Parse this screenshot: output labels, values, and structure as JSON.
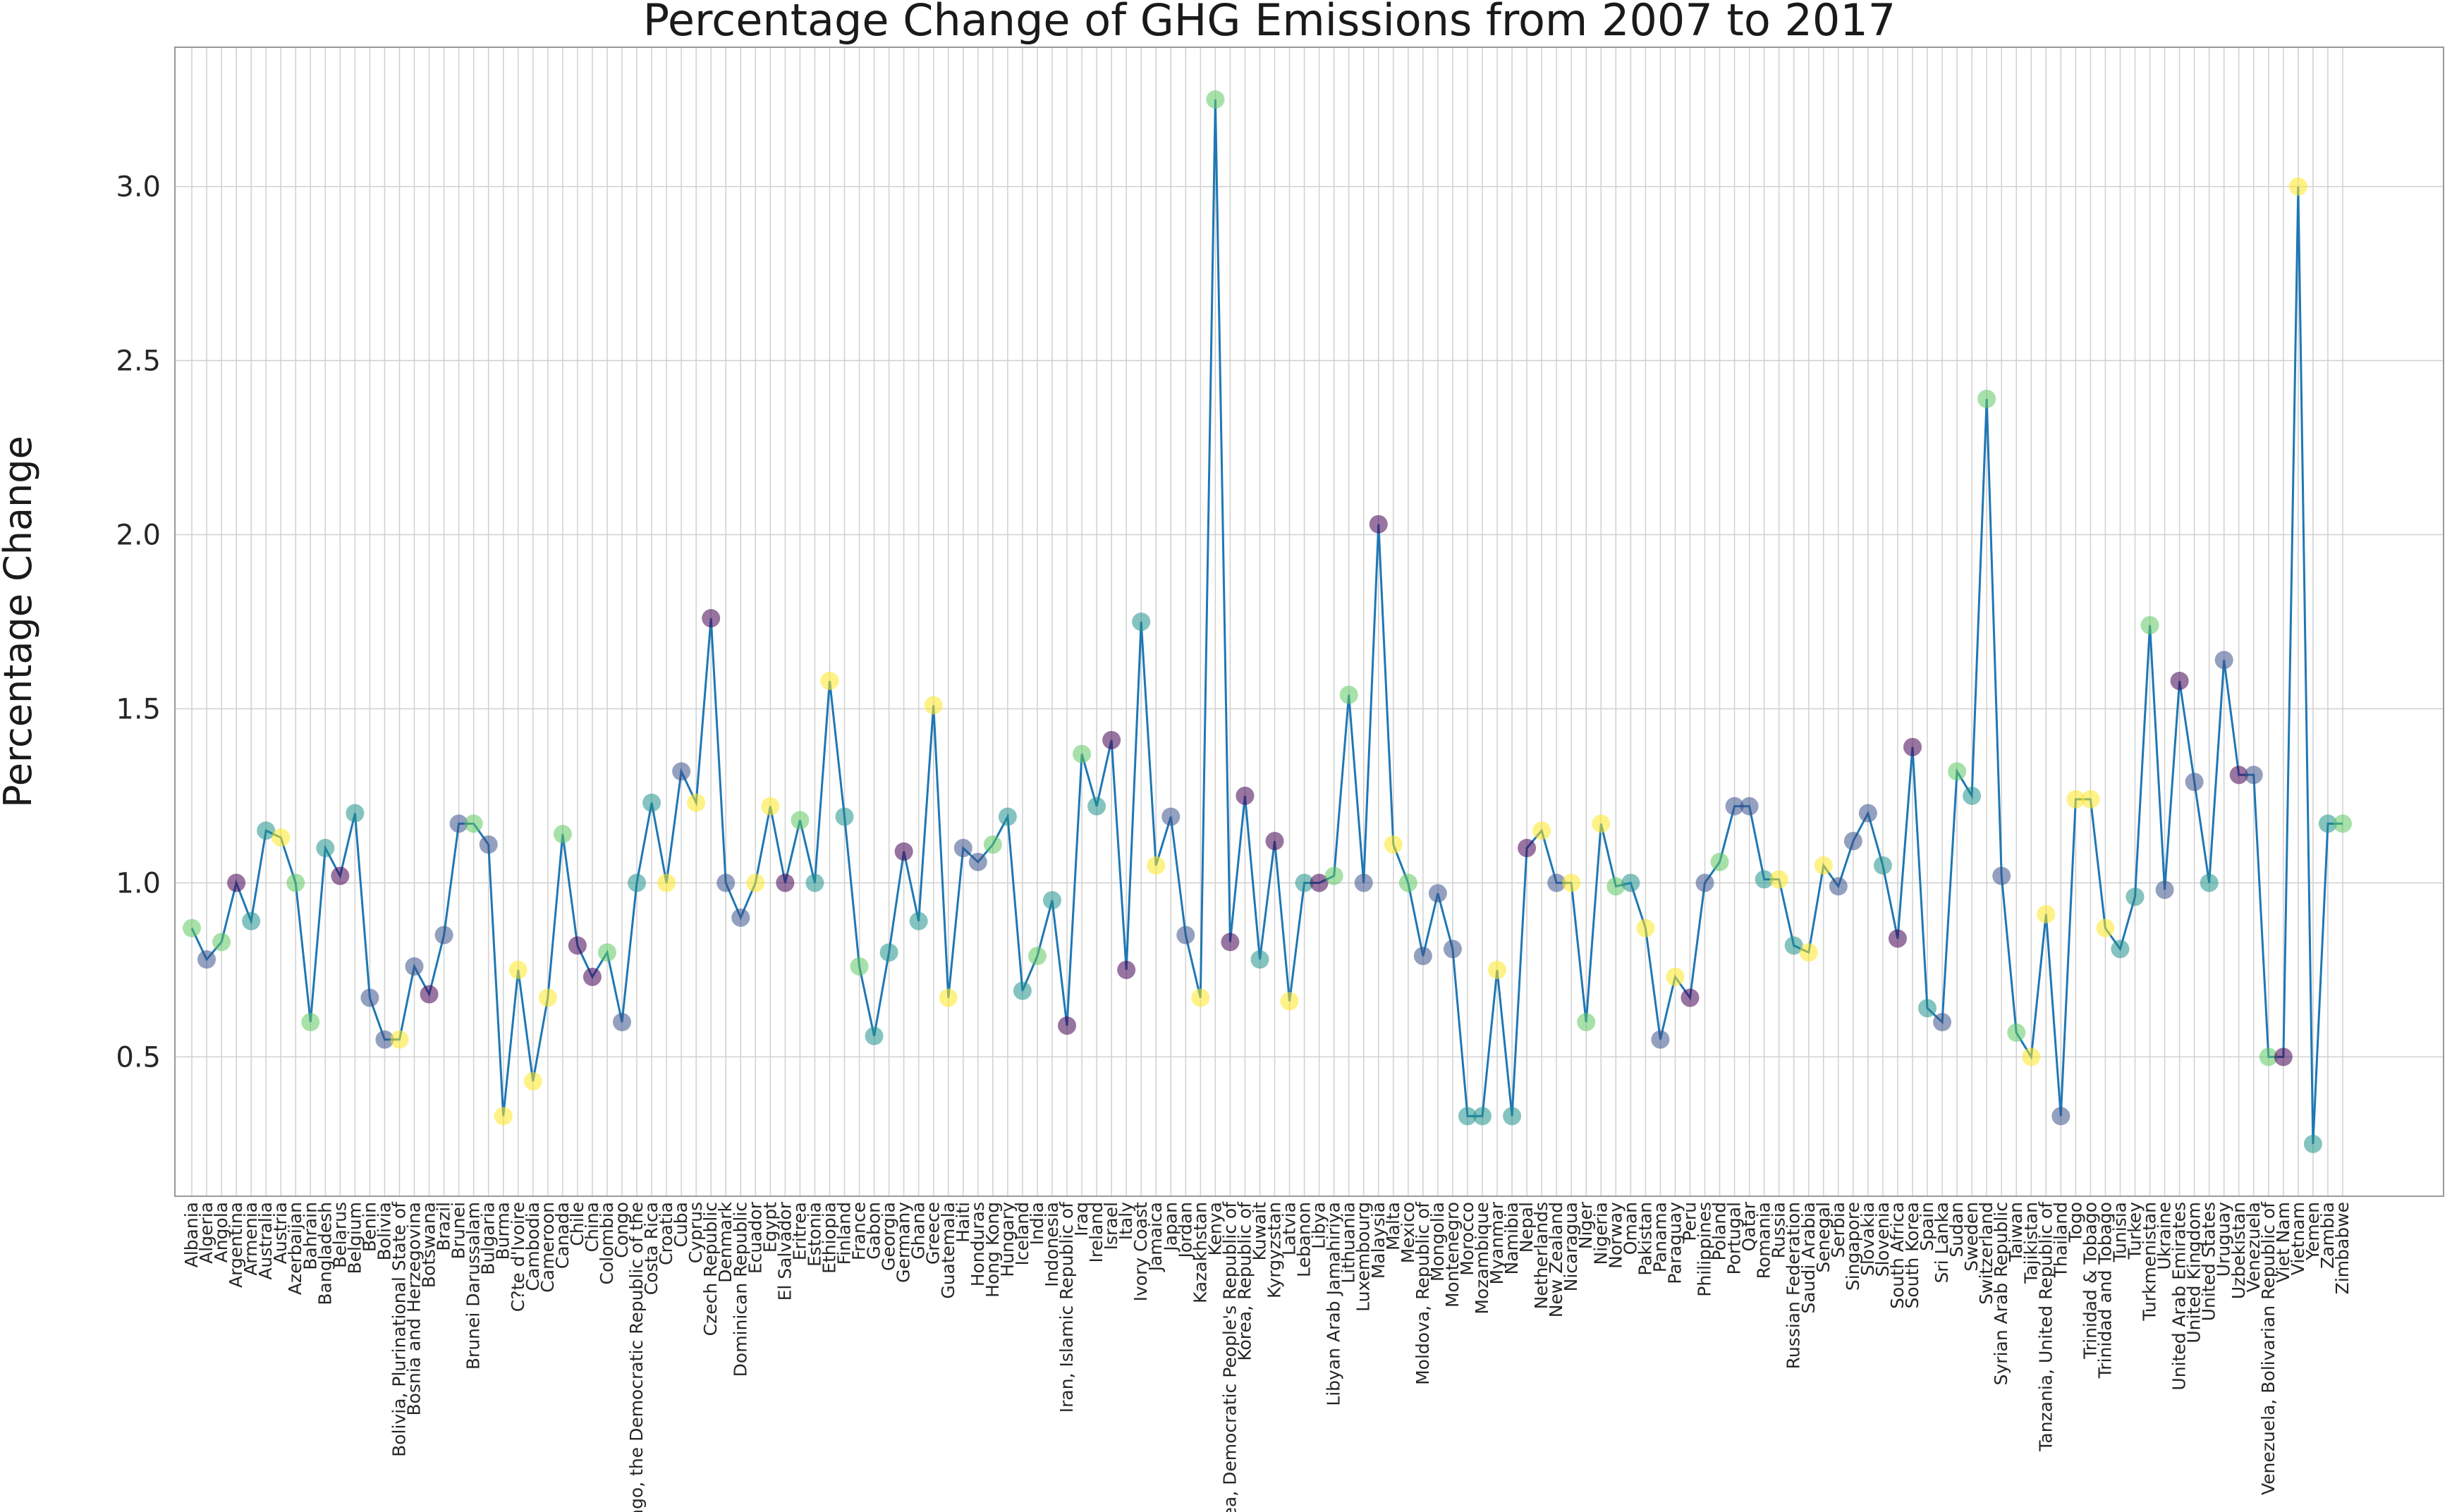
{
  "chart_data": {
    "type": "line",
    "title": "Percentage Change of GHG Emissions from 2007 to 2017",
    "xlabel": "",
    "ylabel": "Percentage Change",
    "ylim": [
      0.1,
      3.4
    ],
    "yticks": [
      "0.5",
      "1.0",
      "1.5",
      "2.0",
      "2.5",
      "3.0"
    ],
    "grid": true,
    "line_color": "#1f77b4",
    "palette": [
      "#440154",
      "#3b528b",
      "#21918c",
      "#5ec962",
      "#fde725"
    ],
    "categories": [
      "Albania",
      "Algeria",
      "Angola",
      "Argentina",
      "Armenia",
      "Australia",
      "Austria",
      "Azerbaijan",
      "Bahrain",
      "Bangladesh",
      "Belarus",
      "Belgium",
      "Benin",
      "Bolivia",
      "Bolivia, Plurinational State of",
      "Bosnia and Herzegovina",
      "Botswana",
      "Brazil",
      "Brunei",
      "Brunei Darussalam",
      "Bulgaria",
      "Burma",
      "C?te d'Ivoire",
      "Cambodia",
      "Cameroon",
      "Canada",
      "Chile",
      "China",
      "Colombia",
      "Congo",
      "Congo, the Democratic Republic of the",
      "Costa Rica",
      "Croatia",
      "Cuba",
      "Cyprus",
      "Czech Republic",
      "Denmark",
      "Dominican Republic",
      "Ecuador",
      "Egypt",
      "El Salvador",
      "Eritrea",
      "Estonia",
      "Ethiopia",
      "Finland",
      "France",
      "Gabon",
      "Georgia",
      "Germany",
      "Ghana",
      "Greece",
      "Guatemala",
      "Haiti",
      "Honduras",
      "Hong Kong",
      "Hungary",
      "Iceland",
      "India",
      "Indonesia",
      "Iran, Islamic Republic of",
      "Iraq",
      "Ireland",
      "Israel",
      "Italy",
      "Ivory Coast",
      "Jamaica",
      "Japan",
      "Jordan",
      "Kazakhstan",
      "Kenya",
      "Korea, Democratic People's Republic of",
      "Korea, Republic of",
      "Kuwait",
      "Kyrgyzstan",
      "Latvia",
      "Lebanon",
      "Libya",
      "Libyan Arab Jamahiriya",
      "Lithuania",
      "Luxembourg",
      "Malaysia",
      "Malta",
      "Mexico",
      "Moldova, Republic of",
      "Mongolia",
      "Montenegro",
      "Morocco",
      "Mozambique",
      "Myanmar",
      "Namibia",
      "Nepal",
      "Netherlands",
      "New Zealand",
      "Nicaragua",
      "Niger",
      "Nigeria",
      "Norway",
      "Oman",
      "Pakistan",
      "Panama",
      "Paraguay",
      "Peru",
      "Philippines",
      "Poland",
      "Portugal",
      "Qatar",
      "Romania",
      "Russia",
      "Russian Federation",
      "Saudi Arabia",
      "Senegal",
      "Serbia",
      "Singapore",
      "Slovakia",
      "Slovenia",
      "South Africa",
      "South Korea",
      "Spain",
      "Sri Lanka",
      "Sudan",
      "Sweden",
      "Switzerland",
      "Syrian Arab Republic",
      "Taiwan",
      "Tajikistan",
      "Tanzania, United Republic of",
      "Thailand",
      "Togo",
      "Trinidad & Tobago",
      "Trinidad and Tobago",
      "Tunisia",
      "Turkey",
      "Turkmenistan",
      "Ukraine",
      "United Arab Emirates",
      "United Kingdom",
      "United States",
      "Uruguay",
      "Uzbekistan",
      "Venezuela",
      "Venezuela, Bolivarian Republic of",
      "Viet Nam",
      "Vietnam",
      "Yemen",
      "Zambia",
      "Zimbabwe"
    ],
    "values": [
      0.87,
      0.78,
      0.83,
      1.0,
      0.89,
      1.15,
      1.13,
      1.0,
      0.6,
      1.1,
      1.02,
      1.2,
      0.67,
      0.55,
      0.55,
      0.76,
      0.68,
      0.85,
      1.17,
      1.17,
      1.11,
      0.33,
      0.75,
      0.43,
      0.67,
      1.14,
      0.82,
      0.73,
      0.8,
      0.6,
      1.0,
      1.23,
      1.0,
      1.32,
      1.23,
      1.76,
      1.0,
      0.9,
      1.0,
      1.22,
      1.0,
      1.18,
      1.0,
      1.58,
      1.19,
      0.76,
      0.56,
      0.8,
      1.09,
      0.89,
      1.51,
      0.67,
      1.1,
      1.06,
      1.11,
      1.19,
      0.69,
      0.79,
      0.95,
      0.59,
      1.37,
      1.22,
      1.41,
      0.75,
      1.75,
      1.05,
      1.19,
      0.85,
      0.67,
      3.25,
      0.83,
      1.25,
      0.78,
      1.12,
      0.66,
      1.0,
      1.0,
      1.02,
      1.54,
      1.0,
      2.03,
      1.11,
      1.0,
      0.79,
      0.97,
      0.81,
      0.33,
      0.33,
      0.75,
      0.33,
      1.1,
      1.15,
      1.0,
      1.0,
      0.6,
      1.17,
      0.99,
      1.0,
      0.87,
      0.55,
      0.73,
      0.67,
      1.0,
      1.06,
      1.22,
      1.22,
      1.01,
      1.01,
      0.82,
      0.8,
      1.05,
      0.99,
      1.12,
      1.2,
      1.05,
      0.84,
      1.39,
      0.64,
      0.6,
      1.32,
      1.25,
      2.39,
      1.02,
      0.57,
      0.5,
      0.91,
      0.33,
      1.24,
      1.24,
      0.87,
      0.81,
      0.96,
      1.74,
      0.98,
      1.58,
      1.29,
      1.0,
      1.64,
      1.31,
      1.31,
      0.5,
      0.5,
      3.0,
      0.25,
      1.17,
      1.17
    ],
    "point_color_index": [
      3,
      1,
      3,
      0,
      2,
      2,
      4,
      3,
      3,
      2,
      0,
      2,
      1,
      1,
      4,
      1,
      0,
      1,
      1,
      3,
      1,
      4,
      4,
      4,
      4,
      3,
      0,
      0,
      3,
      1,
      2,
      2,
      4,
      1,
      4,
      0,
      1,
      1,
      4,
      4,
      0,
      3,
      2,
      4,
      2,
      3,
      2,
      2,
      0,
      2,
      4,
      4,
      1,
      1,
      3,
      2,
      2,
      3,
      2,
      0,
      3,
      2,
      0,
      0,
      2,
      4,
      1,
      1,
      4,
      3,
      0,
      0,
      2,
      0,
      4,
      2,
      0,
      3,
      3,
      1,
      0,
      4,
      3,
      1,
      1,
      1,
      2,
      2,
      4,
      2,
      0,
      4,
      1,
      4,
      3,
      4,
      3,
      2,
      4,
      1,
      4,
      0,
      1,
      3,
      1,
      1,
      2,
      4,
      2,
      4,
      4,
      1,
      1,
      1,
      2,
      0,
      0,
      2,
      1,
      3,
      2,
      3,
      1,
      3,
      4,
      4,
      1,
      4,
      4,
      4,
      2,
      2,
      3,
      1,
      0,
      1,
      2,
      1,
      0,
      1,
      3,
      0,
      4,
      2,
      2,
      3
    ]
  }
}
